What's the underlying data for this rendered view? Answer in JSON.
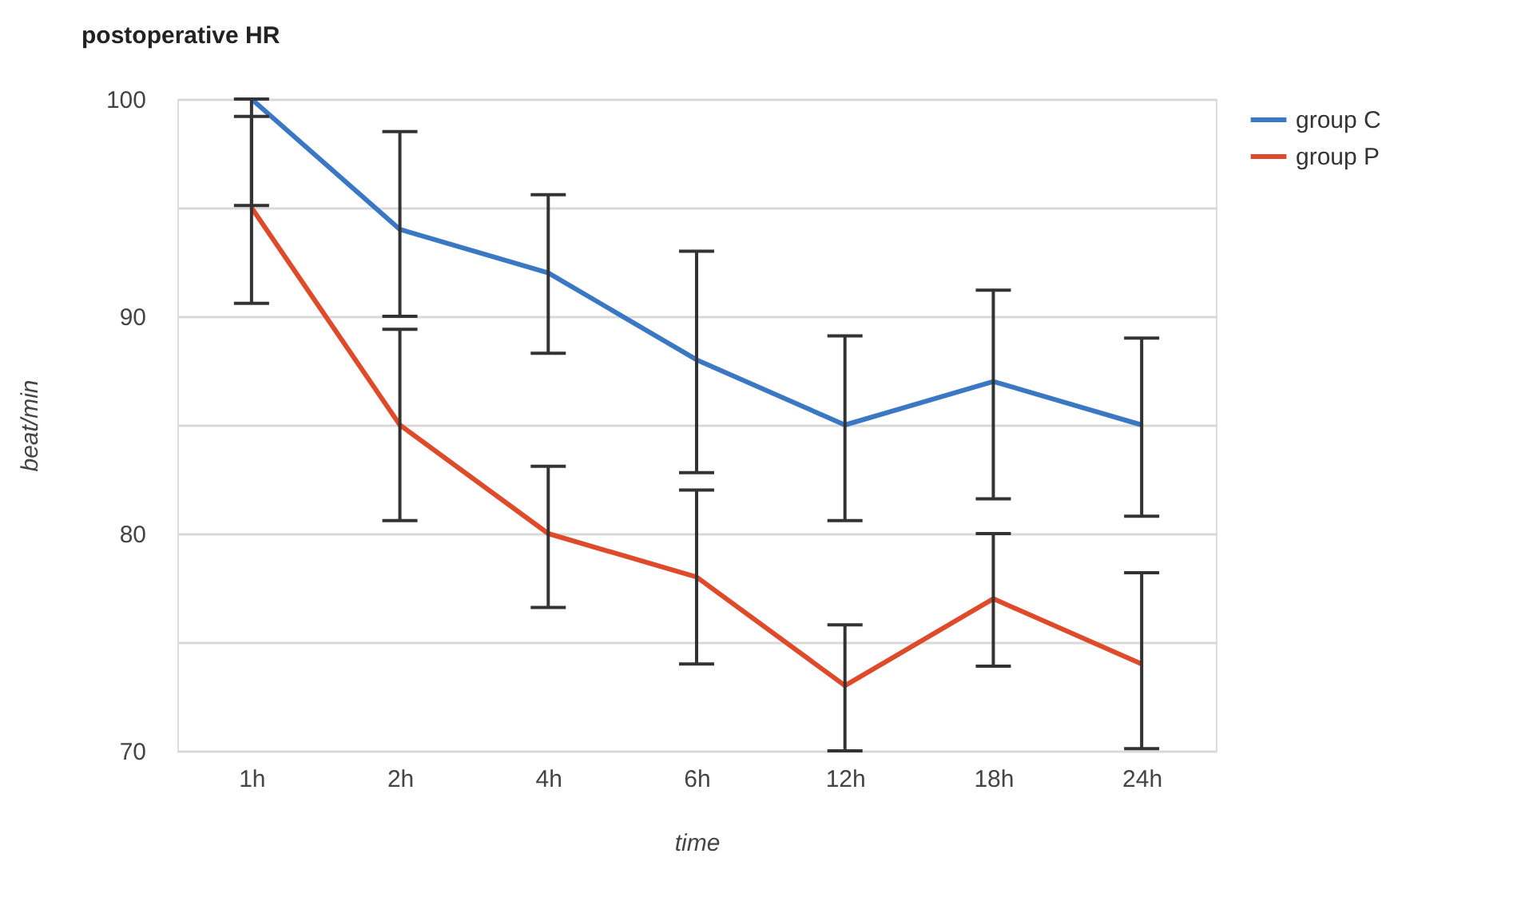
{
  "chart_data": {
    "type": "line",
    "title": "postoperative HR",
    "xlabel": "time",
    "ylabel": "beat/min",
    "categories": [
      "1h",
      "2h",
      "4h",
      "6h",
      "12h",
      "18h",
      "24h"
    ],
    "series": [
      {
        "name": "group C",
        "color": "#3b78c4",
        "values": [
          100,
          94,
          92,
          88,
          85,
          87,
          85
        ],
        "errors": [
          [
            95.1,
            100
          ],
          [
            90.0,
            98.5
          ],
          [
            88.3,
            95.6
          ],
          [
            82.8,
            93.0
          ],
          [
            80.6,
            89.1
          ],
          [
            81.6,
            91.2
          ],
          [
            80.8,
            89.0
          ]
        ]
      },
      {
        "name": "group P",
        "color": "#df4a2b",
        "values": [
          95,
          85,
          80,
          78,
          73,
          77,
          74
        ],
        "errors": [
          [
            90.6,
            99.2
          ],
          [
            80.6,
            89.4
          ],
          [
            76.6,
            83.1
          ],
          [
            74.0,
            82.0
          ],
          [
            70.0,
            75.8
          ],
          [
            73.9,
            80.0
          ],
          [
            70.1,
            78.2
          ]
        ]
      }
    ],
    "ylim": [
      70,
      100
    ],
    "yticks": [
      70,
      {
        "value": 75,
        "label": null
      },
      80,
      {
        "value": 85,
        "label": null
      },
      90,
      {
        "value": 95,
        "label": null
      },
      100
    ],
    "grid": "y",
    "legend": "top right",
    "marker": "none",
    "line_style": "solid"
  }
}
